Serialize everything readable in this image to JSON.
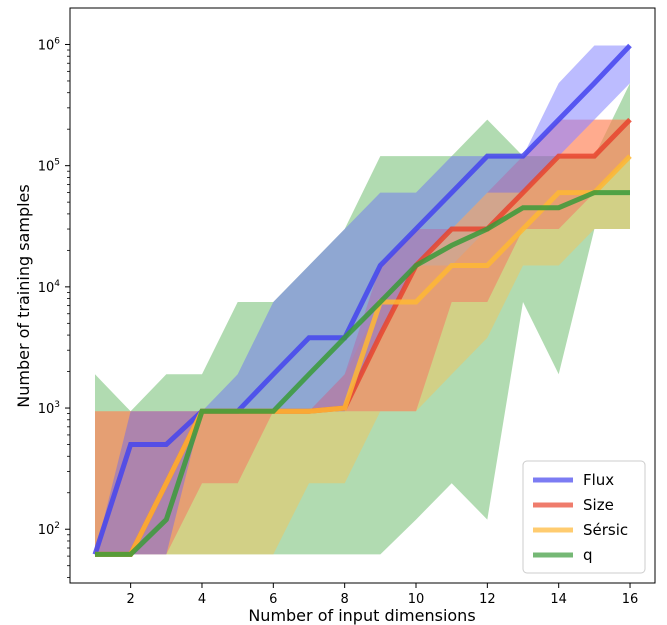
{
  "chart_data": {
    "type": "line",
    "xlabel": "Number of input dimensions",
    "ylabel": "Number of training samples",
    "yscale": "log",
    "xlim": [
      0.3,
      16.7
    ],
    "ylim": [
      36,
      2000000
    ],
    "x_ticks": [
      2,
      4,
      6,
      8,
      10,
      12,
      14,
      16
    ],
    "x_tick_labels": [
      "2",
      "4",
      "6",
      "8",
      "10",
      "12",
      "14",
      "16"
    ],
    "y_ticks": [
      100,
      1000,
      10000,
      100000,
      1000000
    ],
    "y_tick_labels": [
      {
        "base": "10",
        "exp": "2"
      },
      {
        "base": "10",
        "exp": "3"
      },
      {
        "base": "10",
        "exp": "4"
      },
      {
        "base": "10",
        "exp": "5"
      },
      {
        "base": "10",
        "exp": "6"
      }
    ],
    "legend_position": "lower-right",
    "x": [
      1,
      2,
      3,
      4,
      5,
      6,
      7,
      8,
      9,
      10,
      11,
      12,
      13,
      14,
      15,
      16
    ],
    "series": [
      {
        "name": "Flux",
        "color": "#4444ee",
        "band_color": "#6060ff",
        "values": [
          62,
          500,
          500,
          940,
          940,
          1900,
          3800,
          3800,
          15000,
          30000,
          60000,
          120000,
          120000,
          240000,
          480000,
          980000
        ],
        "band_low": [
          62,
          62,
          62,
          940,
          940,
          940,
          940,
          940,
          4000,
          15000,
          30000,
          60000,
          60000,
          120000,
          240000,
          480000
        ],
        "band_high": [
          62,
          940,
          940,
          940,
          1900,
          7500,
          15000,
          30000,
          60000,
          60000,
          120000,
          120000,
          120000,
          480000,
          980000,
          980000
        ]
      },
      {
        "name": "Size",
        "color": "#e8442e",
        "band_color": "#ff5a5a",
        "values": [
          62,
          62,
          240,
          940,
          940,
          940,
          940,
          1000,
          4000,
          15000,
          30000,
          30000,
          60000,
          120000,
          120000,
          240000
        ],
        "band_low": [
          62,
          62,
          62,
          240,
          240,
          940,
          940,
          940,
          940,
          940,
          7500,
          7500,
          30000,
          30000,
          60000,
          120000
        ],
        "band_high": [
          940,
          940,
          940,
          940,
          940,
          940,
          940,
          1900,
          15000,
          30000,
          30000,
          60000,
          120000,
          240000,
          240000,
          240000
        ]
      },
      {
        "name": "Sérsic",
        "color": "#ffb733",
        "band_color": "#ffc24a",
        "values": [
          62,
          62,
          240,
          940,
          940,
          940,
          940,
          1000,
          7500,
          7500,
          15000,
          15000,
          30000,
          60000,
          60000,
          120000
        ],
        "band_low": [
          62,
          62,
          62,
          62,
          62,
          62,
          240,
          240,
          940,
          940,
          1900,
          3800,
          15000,
          15000,
          30000,
          30000
        ],
        "band_high": [
          940,
          940,
          940,
          940,
          940,
          940,
          940,
          1900,
          7500,
          15000,
          15000,
          30000,
          60000,
          120000,
          240000,
          240000
        ]
      },
      {
        "name": "q",
        "color": "#3a9a3a",
        "band_color": "#44aa44",
        "values": [
          62,
          62,
          120,
          940,
          940,
          940,
          1900,
          3800,
          7500,
          15000,
          22000,
          30000,
          45000,
          45000,
          60000,
          60000
        ],
        "band_low": [
          62,
          62,
          62,
          62,
          62,
          62,
          62,
          62,
          62,
          120,
          240,
          120,
          7500,
          1900,
          30000,
          30000
        ],
        "band_high": [
          1900,
          940,
          1900,
          1900,
          7500,
          7500,
          15000,
          30000,
          120000,
          120000,
          120000,
          240000,
          120000,
          120000,
          120000,
          480000
        ]
      }
    ]
  }
}
